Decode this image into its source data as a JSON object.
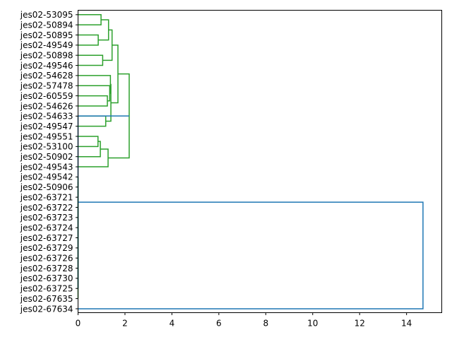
{
  "chart_data": {
    "type": "dendrogram",
    "orientation": "horizontal",
    "title": "",
    "xlabel": "",
    "ylabel": "",
    "xlim": [
      0,
      15.5
    ],
    "xticks": [
      0,
      2,
      4,
      6,
      8,
      10,
      12,
      14
    ],
    "xtick_labels": [
      "0",
      "2",
      "4",
      "6",
      "8",
      "10",
      "12",
      "14"
    ],
    "colors": {
      "cluster": "#2ca02c",
      "root": "#1f77b4",
      "axis": "#000000"
    },
    "leaves": [
      "jes02-53095",
      "jes02-50894",
      "jes02-50895",
      "jes02-49549",
      "jes02-50898",
      "jes02-49546",
      "jes02-54628",
      "jes02-57478",
      "jes02-60559",
      "jes02-54626",
      "jes02-54633",
      "jes02-49547",
      "jes02-49551",
      "jes02-53100",
      "jes02-50902",
      "jes02-49543",
      "jes02-49542",
      "jes02-50906",
      "jes02-63721",
      "jes02-63722",
      "jes02-63723",
      "jes02-63724",
      "jes02-63727",
      "jes02-63729",
      "jes02-63726",
      "jes02-63728",
      "jes02-63730",
      "jes02-63725",
      "jes02-67635",
      "jes02-67634"
    ],
    "merges": [
      {
        "id": "m1",
        "left": "L0",
        "right": "L1",
        "height": 0.98,
        "color": "cluster"
      },
      {
        "id": "m2",
        "left": "L2",
        "right": "L3",
        "height": 0.86,
        "color": "cluster"
      },
      {
        "id": "m3",
        "left": "m1",
        "right": "m2",
        "height": 1.3,
        "color": "cluster"
      },
      {
        "id": "m4",
        "left": "L4",
        "right": "L5",
        "height": 1.05,
        "color": "cluster"
      },
      {
        "id": "m5",
        "left": "m3",
        "right": "m4",
        "height": 1.45,
        "color": "cluster"
      },
      {
        "id": "m6",
        "left": "L8",
        "right": "L9",
        "height": 1.25,
        "color": "cluster"
      },
      {
        "id": "m7",
        "left": "L7",
        "right": "m6",
        "height": 1.35,
        "color": "cluster"
      },
      {
        "id": "m8",
        "left": "L6",
        "right": "m7",
        "height": 1.38,
        "color": "cluster"
      },
      {
        "id": "m9",
        "left": "L10",
        "right": "L11",
        "height": 1.18,
        "color": "cluster"
      },
      {
        "id": "m10",
        "left": "m8",
        "right": "m9",
        "height": 1.4,
        "color": "cluster"
      },
      {
        "id": "m11",
        "left": "m5",
        "right": "m10",
        "height": 1.7,
        "color": "cluster"
      },
      {
        "id": "m12",
        "left": "L12",
        "right": "L13",
        "height": 0.85,
        "color": "cluster"
      },
      {
        "id": "m13",
        "left": "m12",
        "right": "L14",
        "height": 0.95,
        "color": "cluster"
      },
      {
        "id": "m14",
        "left": "m13",
        "right": "L15",
        "height": 1.28,
        "color": "cluster"
      },
      {
        "id": "m15",
        "left": "m11",
        "right": "m14",
        "height": 2.18,
        "color": "cluster"
      },
      {
        "id": "m16",
        "left": "L16",
        "right": "L17",
        "height": 0,
        "color": "cluster"
      },
      {
        "id": "m17",
        "left": "m16",
        "right": "L18",
        "height": 0,
        "color": "cluster"
      },
      {
        "id": "m18",
        "left": "m17",
        "right": "L19",
        "height": 0,
        "color": "cluster"
      },
      {
        "id": "m19",
        "left": "m18",
        "right": "L20",
        "height": 0,
        "color": "cluster"
      },
      {
        "id": "m20",
        "left": "m19",
        "right": "L21",
        "height": 0,
        "color": "cluster"
      },
      {
        "id": "m21",
        "left": "m20",
        "right": "L22",
        "height": 0,
        "color": "cluster"
      },
      {
        "id": "m22",
        "left": "m21",
        "right": "L23",
        "height": 0,
        "color": "cluster"
      },
      {
        "id": "m23",
        "left": "m22",
        "right": "L24",
        "height": 0,
        "color": "cluster"
      },
      {
        "id": "m24",
        "left": "m23",
        "right": "L25",
        "height": 0,
        "color": "cluster"
      },
      {
        "id": "m25",
        "left": "m24",
        "right": "L26",
        "height": 0,
        "color": "cluster"
      },
      {
        "id": "m26",
        "left": "m25",
        "right": "L27",
        "height": 0,
        "color": "cluster"
      },
      {
        "id": "m27",
        "left": "m26",
        "right": "L28",
        "height": 0,
        "color": "cluster"
      },
      {
        "id": "m28",
        "left": "m15",
        "right": "m27",
        "height": 0,
        "color": "root"
      },
      {
        "id": "m29",
        "left": "m28",
        "right": "L29",
        "height": 14.7,
        "color": "root"
      }
    ]
  }
}
